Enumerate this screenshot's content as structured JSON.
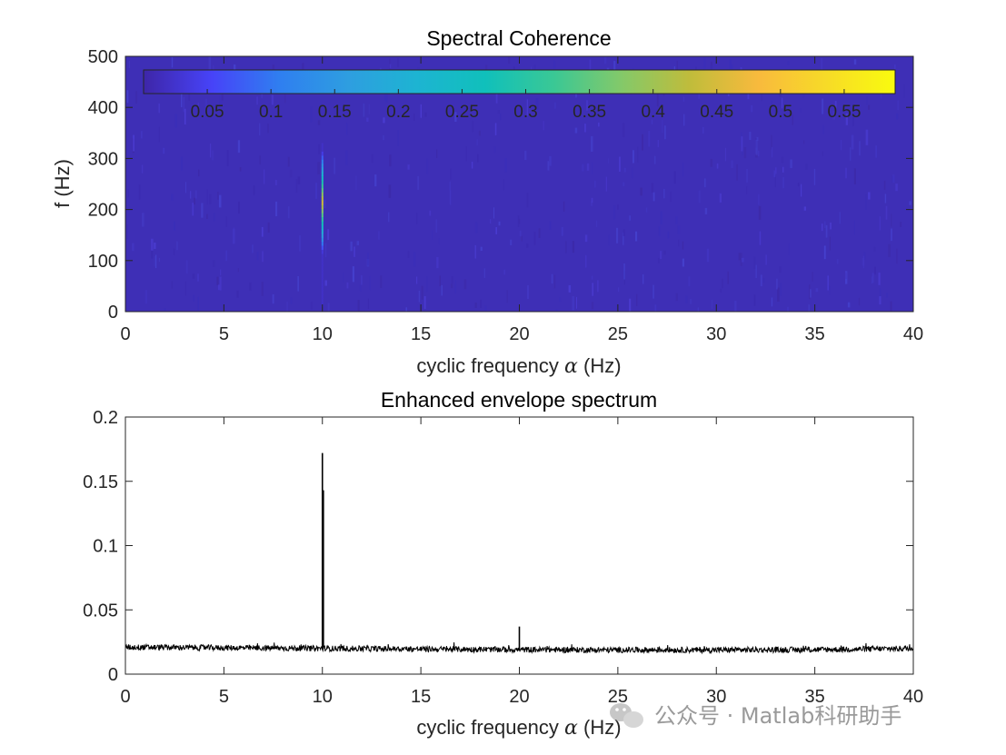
{
  "chart_data": [
    {
      "type": "heatmap",
      "title": "Spectral Coherence",
      "xlabel_text": "cyclic frequency",
      "xlabel_symbol": "α",
      "xlabel_unit": "(Hz)",
      "ylabel": "f (Hz)",
      "xlim": [
        0,
        40
      ],
      "ylim": [
        0,
        500
      ],
      "xticks": [
        0,
        5,
        10,
        15,
        20,
        25,
        30,
        35,
        40
      ],
      "xtick_labels": [
        "0",
        "5",
        "10",
        "15",
        "20",
        "25",
        "30",
        "35",
        "40"
      ],
      "yticks": [
        0,
        100,
        200,
        300,
        400,
        500
      ],
      "ytick_labels": [
        "0",
        "100",
        "200",
        "300",
        "400",
        "500"
      ],
      "background_value": 0.02,
      "features": [
        {
          "alpha": 10,
          "f_range": [
            10,
            330
          ],
          "peak_f": 215,
          "peak_value": 0.45
        }
      ],
      "colorbar": {
        "placement": "inside-top",
        "orientation": "horizontal",
        "clim": [
          0,
          0.59
        ],
        "ticks": [
          0.05,
          0.1,
          0.15,
          0.2,
          0.25,
          0.3,
          0.35,
          0.4,
          0.45,
          0.5,
          0.55
        ],
        "tick_labels": [
          "0.05",
          "0.1",
          "0.15",
          "0.2",
          "0.25",
          "0.3",
          "0.35",
          "0.4",
          "0.45",
          "0.5",
          "0.55"
        ],
        "colormap": [
          "#3e26a8",
          "#4743f8",
          "#2f7ff0",
          "#2e9ee0",
          "#1db4d2",
          "#10c0bb",
          "#3ac895",
          "#84c969",
          "#c0bc3b",
          "#f8ba3d",
          "#f7db27",
          "#f9fb0e"
        ]
      }
    },
    {
      "type": "line",
      "title": "Enhanced envelope spectrum",
      "xlabel_text": "cyclic frequency",
      "xlabel_symbol": "α",
      "xlabel_unit": "(Hz)",
      "ylabel": "",
      "xlim": [
        0,
        40
      ],
      "ylim": [
        0,
        0.2
      ],
      "xticks": [
        0,
        5,
        10,
        15,
        20,
        25,
        30,
        35,
        40
      ],
      "xtick_labels": [
        "0",
        "5",
        "10",
        "15",
        "20",
        "25",
        "30",
        "35",
        "40"
      ],
      "yticks": [
        0,
        0.05,
        0.1,
        0.15,
        0.2
      ],
      "ytick_labels": [
        "0",
        "0.05",
        "0.1",
        "0.15",
        "0.2"
      ],
      "color": "#000000",
      "baseline": {
        "x": [
          0,
          5,
          10,
          15,
          20,
          25,
          30,
          35,
          40
        ],
        "y": [
          0.021,
          0.0205,
          0.02,
          0.0195,
          0.019,
          0.0188,
          0.0188,
          0.019,
          0.02
        ]
      },
      "peaks": [
        {
          "x": 10,
          "y": 0.172
        },
        {
          "x": 10.05,
          "y": 0.143
        },
        {
          "x": 20,
          "y": 0.037
        }
      ]
    }
  ],
  "watermark": {
    "text": "公众号 · Matlab科研助手",
    "icon": "wechat-icon"
  }
}
